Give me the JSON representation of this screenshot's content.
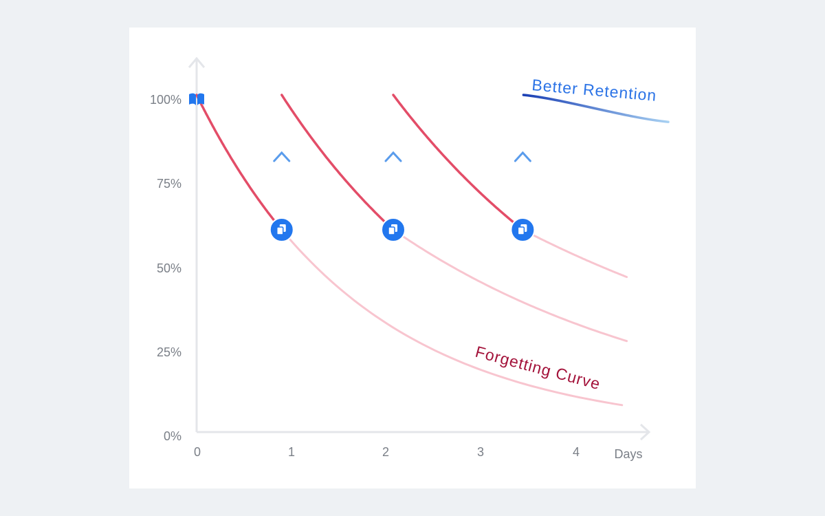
{
  "chart_data": {
    "type": "line",
    "title": "",
    "xlabel": "Days",
    "ylabel": "",
    "x_ticks": [
      "0",
      "1",
      "2",
      "3",
      "4"
    ],
    "y_ticks": [
      "0%",
      "25%",
      "50%",
      "75%",
      "100%"
    ],
    "xlim": [
      0,
      4.5
    ],
    "ylim": [
      0,
      100
    ],
    "grid": false,
    "series": [
      {
        "name": "Forgetting Curve",
        "start_day": 0,
        "start_value": 100,
        "review_days": [
          0.9,
          2.08,
          3.45
        ],
        "retention_at_review": 60,
        "ends": [
          {
            "x": 4.5,
            "y": 8
          },
          {
            "x": 4.55,
            "y": 27
          },
          {
            "x": 4.55,
            "y": 46
          }
        ]
      },
      {
        "name": "Better Retention",
        "start_x": 3.45,
        "start_value": 100,
        "end_x": 5.0,
        "end_value": 92
      }
    ],
    "annotations": [
      {
        "text": "Forgetting Curve",
        "color": "#a3123a"
      },
      {
        "text": "Better Retention",
        "color": "#2b73e6"
      }
    ],
    "colors": {
      "forgetting": "#e34d68",
      "forgetting_faded": "#f8c5cf",
      "boost_top": "#1a3fb4",
      "boost_bottom": "#a8d1f2",
      "review_marker": "#2277ee",
      "axis": "#e4e6ea"
    },
    "icons": [
      "book-icon",
      "review-card-icon"
    ]
  }
}
